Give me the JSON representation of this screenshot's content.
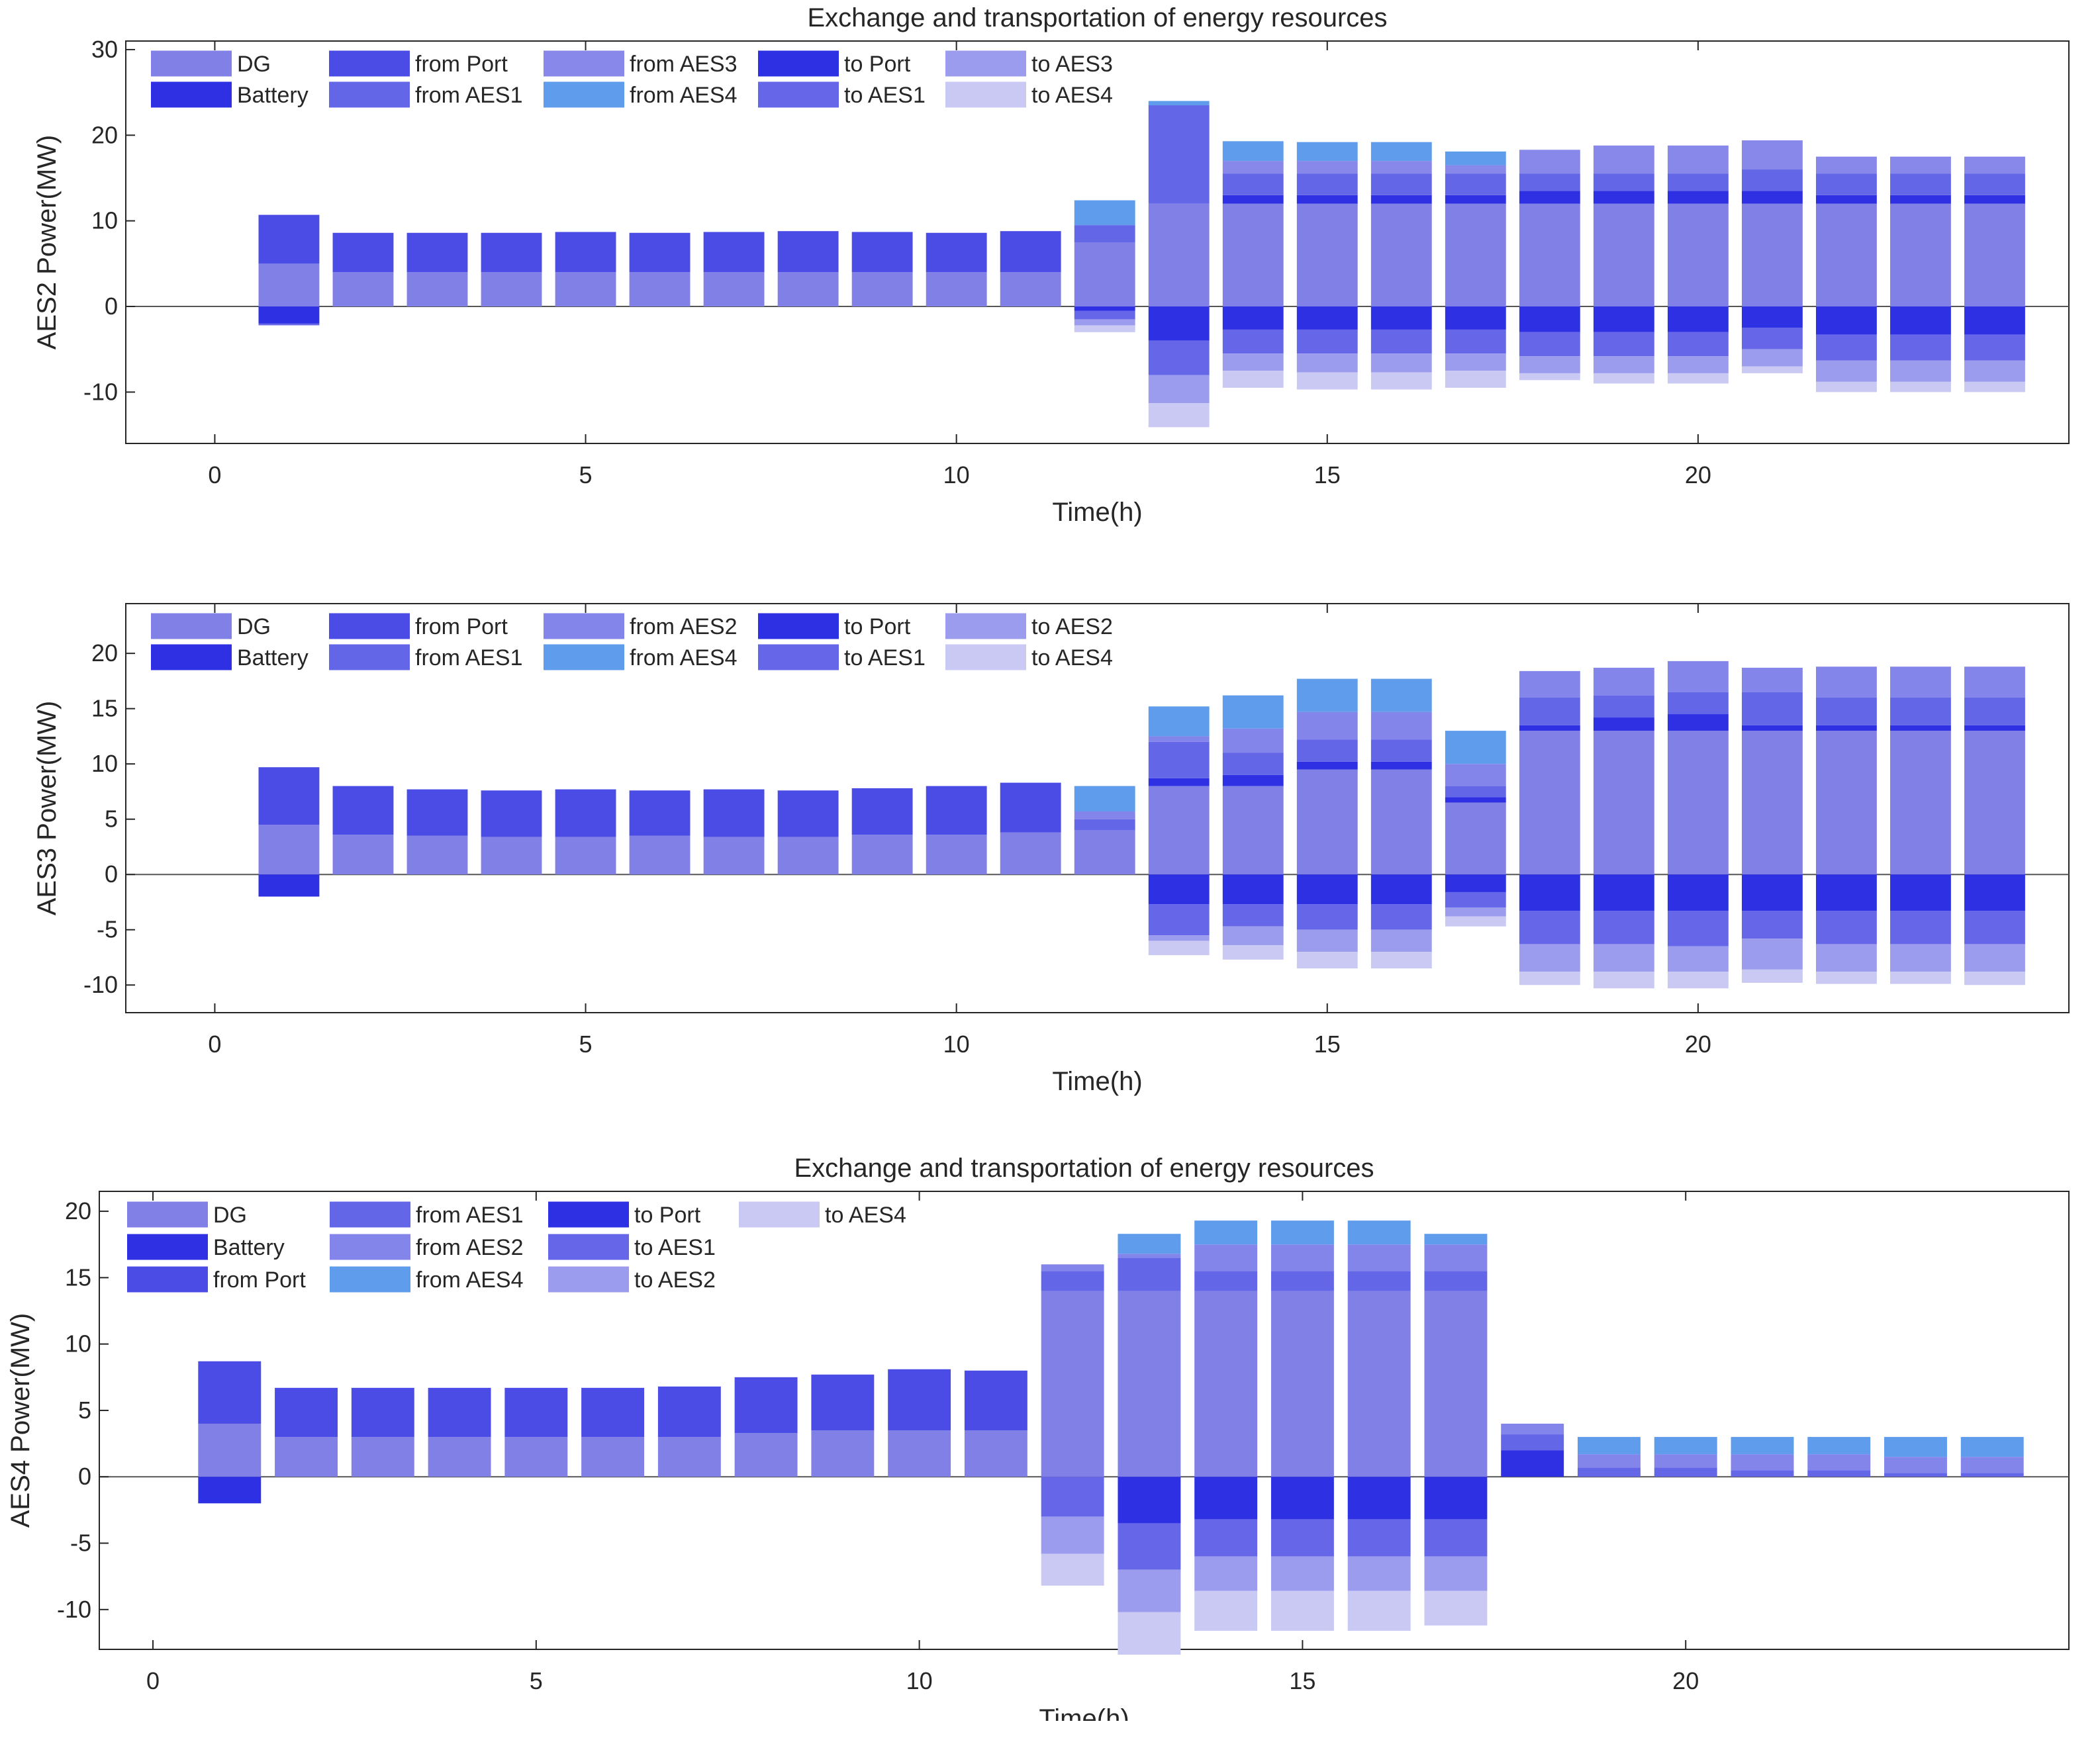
{
  "palette": {
    "DG": "#8080e6",
    "Battery": "#2f30e3",
    "from Port": "#4b4be6",
    "from AES1": "#6466e8",
    "from AES2": "#8485ea",
    "from AES3": "#8788ea",
    "from AES4": "#5f9cec",
    "to Port": "#2e31e3",
    "to AES1": "#6667e8",
    "to AES2": "#9c9cee",
    "to AES3": "#9c9cee",
    "to AES4": "#c9c9f4"
  },
  "chart_data": [
    {
      "id": "aes2",
      "type": "bar",
      "stacked": true,
      "title": "Exchange and transportation of energy resources",
      "xlabel": "Time(h)",
      "ylabel": "AES2 Power(MW)",
      "xlim": [
        -1.2,
        25
      ],
      "ylim": [
        -16,
        31
      ],
      "xticks": [
        0,
        5,
        10,
        15,
        20
      ],
      "yticks": [
        -10,
        0,
        10,
        20,
        30
      ],
      "legend_position": "top-left",
      "legend_columns": 5,
      "legend": [
        "DG",
        "Battery",
        "from Port",
        "from AES1",
        "from AES3",
        "from AES4",
        "to Port",
        "to AES1",
        "to AES3",
        "to AES4"
      ],
      "x": [
        1,
        2,
        3,
        4,
        5,
        6,
        7,
        8,
        9,
        10,
        11,
        12,
        13,
        14,
        15,
        16,
        17,
        18,
        19,
        20,
        21,
        22,
        23,
        24
      ],
      "series": [
        {
          "name": "DG",
          "values": [
            5,
            4,
            4,
            4,
            4,
            4,
            4,
            4,
            4,
            4,
            4,
            7.5,
            12,
            12,
            12,
            12,
            12,
            12,
            12,
            12,
            12,
            12,
            12,
            12
          ]
        },
        {
          "name": "from Port",
          "values": [
            5.7,
            4.6,
            4.6,
            4.6,
            4.7,
            4.6,
            4.7,
            4.8,
            4.7,
            4.6,
            4.8,
            0,
            0,
            0,
            0,
            0,
            0,
            0,
            0,
            0,
            0,
            0,
            0,
            0
          ]
        },
        {
          "name": "Battery",
          "values": [
            0,
            0,
            0,
            0,
            0,
            0,
            0,
            0,
            0,
            0,
            0,
            0,
            0,
            1,
            1,
            1,
            1,
            1.5,
            1.5,
            1.5,
            1.5,
            1,
            1,
            1
          ]
        },
        {
          "name": "from AES1",
          "values": [
            0,
            0,
            0,
            0,
            0,
            0,
            0,
            0,
            0,
            0,
            0,
            2,
            11.5,
            2.5,
            2.5,
            2.5,
            2.5,
            2,
            2,
            2,
            2.5,
            2.5,
            2.5,
            2.5
          ]
        },
        {
          "name": "from AES3",
          "values": [
            0,
            0,
            0,
            0,
            0,
            0,
            0,
            0,
            0,
            0,
            0,
            0,
            0,
            1.5,
            1.5,
            1.5,
            1,
            2.8,
            3.3,
            3.3,
            3.4,
            2,
            2,
            2
          ]
        },
        {
          "name": "from AES4",
          "values": [
            0,
            0,
            0,
            0,
            0,
            0,
            0,
            0,
            0,
            0,
            0,
            2.9,
            0.5,
            2.3,
            2.2,
            2.2,
            1.6,
            0,
            0,
            0,
            0,
            0,
            0,
            0
          ]
        },
        {
          "name": "to Port",
          "values": [
            -2,
            0,
            0,
            0,
            0,
            0,
            0,
            0,
            0,
            0,
            0,
            -0.5,
            -4,
            -2.7,
            -2.7,
            -2.7,
            -2.7,
            -3,
            -3,
            -3,
            -2.5,
            -3.3,
            -3.3,
            -3.3
          ]
        },
        {
          "name": "to AES1",
          "values": [
            -0.2,
            0,
            0,
            0,
            0,
            0,
            0,
            0,
            0,
            0,
            0,
            -1,
            -4,
            -2.8,
            -2.8,
            -2.8,
            -2.8,
            -2.8,
            -2.8,
            -2.8,
            -2.5,
            -3,
            -3,
            -3
          ]
        },
        {
          "name": "to AES3",
          "values": [
            0,
            0,
            0,
            0,
            0,
            0,
            0,
            0,
            0,
            0,
            0,
            -0.7,
            -3.3,
            -2,
            -2.2,
            -2.2,
            -2,
            -2,
            -2,
            -2,
            -2,
            -2.5,
            -2.5,
            -2.5
          ]
        },
        {
          "name": "to AES4",
          "values": [
            0,
            0,
            0,
            0,
            0,
            0,
            0,
            0,
            0,
            0,
            0,
            -0.8,
            -2.8,
            -2,
            -2,
            -2,
            -2,
            -0.8,
            -1.2,
            -1.2,
            -0.8,
            -1.2,
            -1.2,
            -1.2
          ]
        }
      ]
    },
    {
      "id": "aes3",
      "type": "bar",
      "stacked": true,
      "title": "",
      "xlabel": "Time(h)",
      "ylabel": "AES3 Power(MW)",
      "xlim": [
        -1.2,
        25
      ],
      "ylim": [
        -12.5,
        24.5
      ],
      "xticks": [
        0,
        5,
        10,
        15,
        20
      ],
      "yticks": [
        -10,
        -5,
        0,
        5,
        10,
        15,
        20
      ],
      "legend_position": "top-left",
      "legend_columns": 5,
      "legend": [
        "DG",
        "Battery",
        "from Port",
        "from AES1",
        "from AES2",
        "from AES4",
        "to Port",
        "to AES1",
        "to AES2",
        "to AES4"
      ],
      "x": [
        1,
        2,
        3,
        4,
        5,
        6,
        7,
        8,
        9,
        10,
        11,
        12,
        13,
        14,
        15,
        16,
        17,
        18,
        19,
        20,
        21,
        22,
        23,
        24
      ],
      "series": [
        {
          "name": "DG",
          "values": [
            4.5,
            3.6,
            3.5,
            3.4,
            3.4,
            3.5,
            3.4,
            3.4,
            3.6,
            3.6,
            3.8,
            4,
            8,
            8,
            9.5,
            9.5,
            6.5,
            13,
            13,
            13,
            13,
            13,
            13,
            13
          ]
        },
        {
          "name": "from Port",
          "values": [
            5.2,
            4.4,
            4.2,
            4.2,
            4.3,
            4.1,
            4.3,
            4.2,
            4.2,
            4.4,
            4.5,
            0,
            0,
            0,
            0,
            0,
            0,
            0,
            0,
            0,
            0,
            0,
            0,
            0
          ]
        },
        {
          "name": "Battery",
          "values": [
            0,
            0,
            0,
            0,
            0,
            0,
            0,
            0,
            0,
            0,
            0,
            0,
            0.7,
            1,
            0.7,
            0.7,
            0.5,
            0.5,
            1.2,
            1.5,
            0.5,
            0.5,
            0.5,
            0.5
          ]
        },
        {
          "name": "from AES1",
          "values": [
            0,
            0,
            0,
            0,
            0,
            0,
            0,
            0,
            0,
            0,
            0,
            1,
            3.3,
            2,
            2,
            2,
            1,
            2.5,
            2,
            2,
            3,
            2.5,
            2.5,
            2.5
          ]
        },
        {
          "name": "from AES2",
          "values": [
            0,
            0,
            0,
            0,
            0,
            0,
            0,
            0,
            0,
            0,
            0,
            0.7,
            0.5,
            2.2,
            2.5,
            2.5,
            2,
            2.4,
            2.5,
            2.8,
            2.2,
            2.8,
            2.8,
            2.8
          ]
        },
        {
          "name": "from AES4",
          "values": [
            0,
            0,
            0,
            0,
            0,
            0,
            0,
            0,
            0,
            0,
            0,
            2.3,
            2.7,
            3,
            3,
            3,
            3,
            0,
            0,
            0,
            0,
            0,
            0,
            0
          ]
        },
        {
          "name": "to Port",
          "values": [
            -2,
            0,
            0,
            0,
            0,
            0,
            0,
            0,
            0,
            0,
            0,
            0,
            -2.7,
            -2.7,
            -2.7,
            -2.7,
            -1.6,
            -3.3,
            -3.3,
            -3.3,
            -3.3,
            -3.3,
            -3.3,
            -3.3
          ]
        },
        {
          "name": "to AES1",
          "values": [
            0,
            0,
            0,
            0,
            0,
            0,
            0,
            0,
            0,
            0,
            0,
            0,
            -2.8,
            -2,
            -2.3,
            -2.3,
            -1.4,
            -3,
            -3,
            -3.2,
            -2.5,
            -3,
            -3,
            -3
          ]
        },
        {
          "name": "to AES2",
          "values": [
            0,
            0,
            0,
            0,
            0,
            0,
            0,
            0,
            0,
            0,
            0,
            0,
            -0.5,
            -1.7,
            -2,
            -2,
            -0.8,
            -2.5,
            -2.5,
            -2.3,
            -2.8,
            -2.5,
            -2.5,
            -2.5
          ]
        },
        {
          "name": "to AES4",
          "values": [
            0,
            0,
            0,
            0,
            0,
            0,
            0,
            0,
            0,
            0,
            0,
            0,
            -1.3,
            -1.3,
            -1.5,
            -1.5,
            -0.9,
            -1.2,
            -1.5,
            -1.5,
            -1.2,
            -1.1,
            -1.1,
            -1.2
          ]
        }
      ]
    },
    {
      "id": "aes4",
      "type": "bar",
      "stacked": true,
      "title": "Exchange and transportation of energy resources",
      "xlabel": "Time(h)",
      "ylabel": "AES4 Power(MW)",
      "xlim": [
        -0.7,
        25
      ],
      "ylim": [
        -13,
        21.5
      ],
      "xticks": [
        0,
        5,
        10,
        15,
        20
      ],
      "yticks": [
        -10,
        -5,
        0,
        5,
        10,
        15,
        20
      ],
      "legend_position": "top-left",
      "legend_columns": 4,
      "legend": [
        "DG",
        "Battery",
        "from Port",
        "from AES1",
        "from AES2",
        "from AES4",
        "to Port",
        "to AES1",
        "to AES2",
        "to AES4"
      ],
      "x": [
        1,
        2,
        3,
        4,
        5,
        6,
        7,
        8,
        9,
        10,
        11,
        12,
        13,
        14,
        15,
        16,
        17,
        18,
        19,
        20,
        21,
        22,
        23,
        24
      ],
      "series": [
        {
          "name": "DG",
          "values": [
            4,
            3,
            3,
            3,
            3,
            3,
            3,
            3.3,
            3.5,
            3.5,
            3.5,
            14,
            14,
            14,
            14,
            14,
            14,
            0,
            0,
            0,
            0,
            0,
            0,
            0
          ]
        },
        {
          "name": "Battery",
          "values": [
            0,
            0,
            0,
            0,
            0,
            0,
            0,
            0,
            0,
            0,
            0,
            0,
            0,
            0,
            0,
            0,
            0,
            2,
            0,
            0,
            0,
            0,
            0,
            0
          ]
        },
        {
          "name": "from Port",
          "values": [
            4.7,
            3.7,
            3.7,
            3.7,
            3.7,
            3.7,
            3.8,
            4.2,
            4.2,
            4.6,
            4.5,
            0,
            0,
            0,
            0,
            0,
            0,
            0,
            0,
            0,
            0,
            0,
            0,
            0
          ]
        },
        {
          "name": "from AES1",
          "values": [
            0,
            0,
            0,
            0,
            0,
            0,
            0,
            0,
            0,
            0,
            0,
            1.5,
            2.5,
            1.5,
            1.5,
            1.5,
            1.5,
            1.2,
            0.7,
            0.7,
            0.5,
            0.5,
            0.3,
            0.3
          ]
        },
        {
          "name": "from AES2",
          "values": [
            0,
            0,
            0,
            0,
            0,
            0,
            0,
            0,
            0,
            0,
            0,
            0.5,
            0.3,
            2,
            2,
            2,
            2,
            0.8,
            1,
            1,
            1.2,
            1.2,
            1.2,
            1.2
          ]
        },
        {
          "name": "from AES4",
          "values": [
            0,
            0,
            0,
            0,
            0,
            0,
            0,
            0,
            0,
            0,
            0,
            0,
            1.5,
            1.8,
            1.8,
            1.8,
            0.8,
            0,
            1.3,
            1.3,
            1.3,
            1.3,
            1.5,
            1.5
          ]
        },
        {
          "name": "to Port",
          "values": [
            -2,
            0,
            0,
            0,
            0,
            0,
            0,
            0,
            0,
            0,
            0,
            0,
            -3.5,
            -3.2,
            -3.2,
            -3.2,
            -3.2,
            0,
            0,
            0,
            0,
            0,
            0,
            0
          ]
        },
        {
          "name": "to AES1",
          "values": [
            0,
            0,
            0,
            0,
            0,
            0,
            0,
            0,
            0,
            0,
            0,
            -3,
            -3.5,
            -2.8,
            -2.8,
            -2.8,
            -2.8,
            0,
            0,
            0,
            0,
            0,
            0,
            0
          ]
        },
        {
          "name": "to AES2",
          "values": [
            0,
            0,
            0,
            0,
            0,
            0,
            0,
            0,
            0,
            0,
            0,
            -2.8,
            -3.2,
            -2.6,
            -2.6,
            -2.6,
            -2.6,
            0,
            0,
            0,
            0,
            0,
            0,
            0
          ]
        },
        {
          "name": "to AES4",
          "values": [
            0,
            0,
            0,
            0,
            0,
            0,
            0,
            0,
            0,
            0,
            0,
            -2.4,
            -3.2,
            -3,
            -3,
            -3,
            -2.6,
            0,
            0,
            0,
            0,
            0,
            0,
            0
          ]
        }
      ]
    }
  ]
}
